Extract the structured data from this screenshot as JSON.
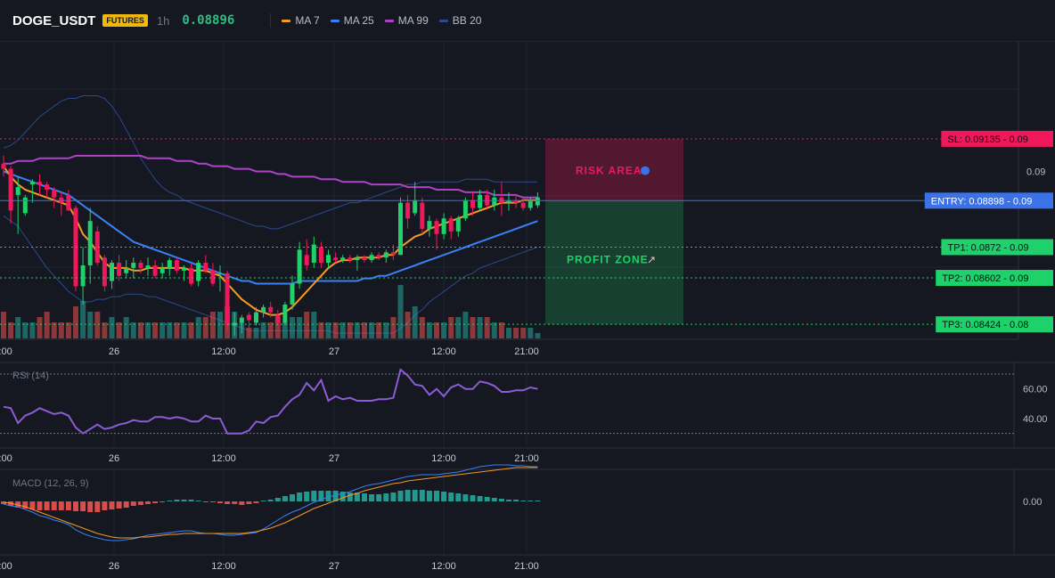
{
  "header": {
    "symbol": "DOGE_USDT",
    "badge": "FUTURES",
    "timeframe": "1h",
    "price": "0.08896",
    "legend": [
      {
        "label": "MA 7",
        "color": "#f59a23"
      },
      {
        "label": "MA 25",
        "color": "#3b7ff5"
      },
      {
        "label": "MA 99",
        "color": "#b042c9"
      },
      {
        "label": "BB 20",
        "color": "#2a4a8f"
      }
    ]
  },
  "levels": [
    {
      "name": "sl",
      "label": "SL: 0.09135 - 0.09",
      "value": 0.09135,
      "color": "#f0185a",
      "style": "dotted"
    },
    {
      "name": "entry",
      "label": "ENTRY: 0.08898 - 0.09",
      "value": 0.08898,
      "color": "#3b72e8",
      "style": "solid"
    },
    {
      "name": "tp1",
      "label": "TP1: 0.0872 - 0.09",
      "value": 0.0872,
      "color": "#1fd16a",
      "style": "dotted"
    },
    {
      "name": "tp2",
      "label": "TP2: 0.08602 - 0.09",
      "value": 0.08602,
      "color": "#1fd16a",
      "style": "dotted"
    },
    {
      "name": "tp3",
      "label": "TP3: 0.08424 - 0.08",
      "value": 0.08424,
      "color": "#1fd16a",
      "style": "dotted"
    }
  ],
  "zones": {
    "risk_label": "RISK AREA",
    "profit_label": "PROFIT ZONE",
    "risk_color": "#f0185a",
    "profit_color": "#1fd16a"
  },
  "price_axis": {
    "ticks": [
      "0.09"
    ],
    "tick_values": [
      0.0901
    ]
  },
  "time_axis": {
    "labels": [
      "12:00",
      "26",
      "12:00",
      "27",
      "12:00",
      "21:00"
    ]
  },
  "rsi": {
    "title": "RSI (14)",
    "ticks": [
      "60.00",
      "40.00"
    ],
    "tick_values": [
      60,
      40
    ],
    "bands": [
      70,
      30
    ],
    "ylim": [
      22,
      76
    ],
    "color": "#8b5cd6"
  },
  "macd": {
    "title": "MACD (12, 26, 9)",
    "ticks": [
      "0.00"
    ],
    "tick_values": [
      0
    ],
    "macd_color": "#3b7ff5",
    "signal_color": "#f59a23",
    "pos_color": "#26a69a",
    "neg_color": "#ef5350"
  },
  "chart_data": {
    "type": "candlestick",
    "ylim": [
      0.0837,
      0.0951
    ],
    "candles": [
      {
        "o": 0.0904,
        "h": 0.0907,
        "l": 0.0899,
        "c": 0.0902
      },
      {
        "o": 0.0902,
        "h": 0.0903,
        "l": 0.0881,
        "c": 0.0886
      },
      {
        "o": 0.0892,
        "h": 0.0899,
        "l": 0.0877,
        "c": 0.0895
      },
      {
        "o": 0.0885,
        "h": 0.0892,
        "l": 0.0884,
        "c": 0.0891
      },
      {
        "o": 0.0896,
        "h": 0.0898,
        "l": 0.0889,
        "c": 0.0897
      },
      {
        "o": 0.0897,
        "h": 0.09,
        "l": 0.0892,
        "c": 0.0896
      },
      {
        "o": 0.0896,
        "h": 0.0897,
        "l": 0.0891,
        "c": 0.0894
      },
      {
        "o": 0.0894,
        "h": 0.0895,
        "l": 0.0887,
        "c": 0.0891
      },
      {
        "o": 0.0891,
        "h": 0.0893,
        "l": 0.0884,
        "c": 0.0889
      },
      {
        "o": 0.0892,
        "h": 0.0894,
        "l": 0.0886,
        "c": 0.0886
      },
      {
        "o": 0.0887,
        "h": 0.0888,
        "l": 0.0855,
        "c": 0.0857
      },
      {
        "o": 0.0857,
        "h": 0.0872,
        "l": 0.085,
        "c": 0.0865
      },
      {
        "o": 0.0865,
        "h": 0.0887,
        "l": 0.0858,
        "c": 0.0882
      },
      {
        "o": 0.0878,
        "h": 0.088,
        "l": 0.0865,
        "c": 0.0866
      },
      {
        "o": 0.0868,
        "h": 0.0869,
        "l": 0.0855,
        "c": 0.0857
      },
      {
        "o": 0.0859,
        "h": 0.0867,
        "l": 0.0856,
        "c": 0.0866
      },
      {
        "o": 0.0866,
        "h": 0.0869,
        "l": 0.0859,
        "c": 0.0861
      },
      {
        "o": 0.0862,
        "h": 0.0867,
        "l": 0.086,
        "c": 0.0864
      },
      {
        "o": 0.0864,
        "h": 0.0868,
        "l": 0.086,
        "c": 0.0866
      },
      {
        "o": 0.0866,
        "h": 0.0867,
        "l": 0.0862,
        "c": 0.0864
      },
      {
        "o": 0.0864,
        "h": 0.0868,
        "l": 0.0861,
        "c": 0.0865
      },
      {
        "o": 0.0865,
        "h": 0.0867,
        "l": 0.086,
        "c": 0.0861
      },
      {
        "o": 0.0862,
        "h": 0.0866,
        "l": 0.086,
        "c": 0.0864
      },
      {
        "o": 0.0864,
        "h": 0.0868,
        "l": 0.0861,
        "c": 0.0867
      },
      {
        "o": 0.0867,
        "h": 0.0868,
        "l": 0.0862,
        "c": 0.0863
      },
      {
        "o": 0.0863,
        "h": 0.0865,
        "l": 0.0859,
        "c": 0.0864
      },
      {
        "o": 0.0864,
        "h": 0.0866,
        "l": 0.0857,
        "c": 0.0858
      },
      {
        "o": 0.0859,
        "h": 0.0867,
        "l": 0.0857,
        "c": 0.0866
      },
      {
        "o": 0.0866,
        "h": 0.0869,
        "l": 0.0862,
        "c": 0.0863
      },
      {
        "o": 0.0863,
        "h": 0.0866,
        "l": 0.0857,
        "c": 0.0858
      },
      {
        "o": 0.0862,
        "h": 0.0865,
        "l": 0.0855,
        "c": 0.0862
      },
      {
        "o": 0.0862,
        "h": 0.0863,
        "l": 0.084,
        "c": 0.0842
      },
      {
        "o": 0.0842,
        "h": 0.0847,
        "l": 0.0838,
        "c": 0.0843
      },
      {
        "o": 0.0843,
        "h": 0.0846,
        "l": 0.0839,
        "c": 0.0845
      },
      {
        "o": 0.0846,
        "h": 0.0847,
        "l": 0.0838,
        "c": 0.0844
      },
      {
        "o": 0.0843,
        "h": 0.0849,
        "l": 0.0842,
        "c": 0.0847
      },
      {
        "o": 0.0847,
        "h": 0.085,
        "l": 0.0845,
        "c": 0.0849
      },
      {
        "o": 0.0849,
        "h": 0.0851,
        "l": 0.0845,
        "c": 0.0847
      },
      {
        "o": 0.0846,
        "h": 0.0848,
        "l": 0.0842,
        "c": 0.0843
      },
      {
        "o": 0.0843,
        "h": 0.0851,
        "l": 0.0842,
        "c": 0.085
      },
      {
        "o": 0.085,
        "h": 0.0861,
        "l": 0.0848,
        "c": 0.0858
      },
      {
        "o": 0.0858,
        "h": 0.0874,
        "l": 0.0856,
        "c": 0.0871
      },
      {
        "o": 0.0869,
        "h": 0.0875,
        "l": 0.0863,
        "c": 0.0865
      },
      {
        "o": 0.0866,
        "h": 0.0876,
        "l": 0.0864,
        "c": 0.0873
      },
      {
        "o": 0.0872,
        "h": 0.0874,
        "l": 0.0864,
        "c": 0.0866
      },
      {
        "o": 0.0866,
        "h": 0.0871,
        "l": 0.0864,
        "c": 0.0869
      },
      {
        "o": 0.0868,
        "h": 0.087,
        "l": 0.0866,
        "c": 0.0867
      },
      {
        "o": 0.0867,
        "h": 0.0869,
        "l": 0.0866,
        "c": 0.0868
      },
      {
        "o": 0.0868,
        "h": 0.0869,
        "l": 0.0866,
        "c": 0.0867
      },
      {
        "o": 0.0867,
        "h": 0.0869,
        "l": 0.0863,
        "c": 0.0868
      },
      {
        "o": 0.0868,
        "h": 0.0869,
        "l": 0.0866,
        "c": 0.0867
      },
      {
        "o": 0.0867,
        "h": 0.087,
        "l": 0.0866,
        "c": 0.0869
      },
      {
        "o": 0.0869,
        "h": 0.087,
        "l": 0.0867,
        "c": 0.0868
      },
      {
        "o": 0.0868,
        "h": 0.0871,
        "l": 0.0866,
        "c": 0.087
      },
      {
        "o": 0.087,
        "h": 0.0873,
        "l": 0.0867,
        "c": 0.0869
      },
      {
        "o": 0.0869,
        "h": 0.0891,
        "l": 0.0869,
        "c": 0.0889
      },
      {
        "o": 0.0889,
        "h": 0.0892,
        "l": 0.0879,
        "c": 0.0883
      },
      {
        "o": 0.0885,
        "h": 0.0897,
        "l": 0.0884,
        "c": 0.089
      },
      {
        "o": 0.0889,
        "h": 0.0891,
        "l": 0.0877,
        "c": 0.0879
      },
      {
        "o": 0.0879,
        "h": 0.0884,
        "l": 0.0876,
        "c": 0.0882
      },
      {
        "o": 0.0882,
        "h": 0.0883,
        "l": 0.0871,
        "c": 0.0877
      },
      {
        "o": 0.0877,
        "h": 0.0885,
        "l": 0.0875,
        "c": 0.0883
      },
      {
        "o": 0.0883,
        "h": 0.0884,
        "l": 0.0875,
        "c": 0.0878
      },
      {
        "o": 0.0878,
        "h": 0.0884,
        "l": 0.0876,
        "c": 0.0883
      },
      {
        "o": 0.0883,
        "h": 0.0891,
        "l": 0.0882,
        "c": 0.089
      },
      {
        "o": 0.089,
        "h": 0.0893,
        "l": 0.0884,
        "c": 0.0887
      },
      {
        "o": 0.0887,
        "h": 0.0894,
        "l": 0.0886,
        "c": 0.0892
      },
      {
        "o": 0.0892,
        "h": 0.0894,
        "l": 0.0887,
        "c": 0.0888
      },
      {
        "o": 0.0888,
        "h": 0.0894,
        "l": 0.0886,
        "c": 0.0891
      },
      {
        "o": 0.0891,
        "h": 0.0897,
        "l": 0.0884,
        "c": 0.0889
      },
      {
        "o": 0.0889,
        "h": 0.0893,
        "l": 0.0886,
        "c": 0.089
      },
      {
        "o": 0.089,
        "h": 0.0892,
        "l": 0.0887,
        "c": 0.0889
      },
      {
        "o": 0.0889,
        "h": 0.0891,
        "l": 0.0886,
        "c": 0.0887
      },
      {
        "o": 0.0887,
        "h": 0.0891,
        "l": 0.0886,
        "c": 0.089
      },
      {
        "o": 0.0888,
        "h": 0.0893,
        "l": 0.0887,
        "c": 0.0891
      }
    ],
    "volume": [
      5,
      3,
      4,
      3,
      3,
      4,
      5,
      3,
      3,
      3,
      6,
      7,
      5,
      5,
      3,
      4,
      3,
      4,
      3,
      3,
      3,
      3,
      3,
      3,
      3,
      3,
      3,
      4,
      4,
      5,
      5,
      6,
      5,
      3,
      2,
      2,
      3,
      3,
      4,
      3,
      4,
      4,
      5,
      5,
      3,
      3,
      3,
      3,
      3,
      3,
      3,
      3,
      3,
      3,
      4,
      10,
      5,
      6,
      4,
      3,
      3,
      3,
      4,
      4,
      5,
      4,
      4,
      4,
      3,
      3,
      2,
      2,
      2,
      2,
      1
    ],
    "ma7": [
      0.0903,
      0.0899,
      0.0896,
      0.0894,
      0.0893,
      0.0892,
      0.0891,
      0.089,
      0.0889,
      0.0888,
      0.0883,
      0.0877,
      0.0874,
      0.087,
      0.0866,
      0.0864,
      0.0864,
      0.0864,
      0.0863,
      0.0863,
      0.0864,
      0.0864,
      0.0864,
      0.0864,
      0.0864,
      0.0864,
      0.0863,
      0.0863,
      0.0863,
      0.0862,
      0.0861,
      0.0858,
      0.0855,
      0.0852,
      0.085,
      0.0848,
      0.0847,
      0.0846,
      0.0846,
      0.0847,
      0.0849,
      0.0852,
      0.0855,
      0.0858,
      0.0861,
      0.0864,
      0.0866,
      0.0867,
      0.0867,
      0.0868,
      0.0868,
      0.0868,
      0.0868,
      0.0869,
      0.0869,
      0.0872,
      0.0874,
      0.0876,
      0.0877,
      0.0879,
      0.088,
      0.0881,
      0.0882,
      0.0883,
      0.0884,
      0.0885,
      0.0886,
      0.0887,
      0.0888,
      0.0889,
      0.0889,
      0.0889,
      0.089,
      0.089,
      0.089
    ],
    "ma25": [
      0.0901,
      0.09,
      0.0899,
      0.0898,
      0.0897,
      0.0896,
      0.0895,
      0.0894,
      0.0893,
      0.0892,
      0.089,
      0.0888,
      0.0886,
      0.0884,
      0.0882,
      0.088,
      0.0878,
      0.0876,
      0.0874,
      0.0873,
      0.0872,
      0.0871,
      0.087,
      0.0869,
      0.0868,
      0.0867,
      0.0866,
      0.0865,
      0.0864,
      0.0863,
      0.0862,
      0.0861,
      0.086,
      0.0859,
      0.0859,
      0.0858,
      0.0858,
      0.0858,
      0.0858,
      0.0858,
      0.0858,
      0.0859,
      0.0859,
      0.0859,
      0.0859,
      0.0859,
      0.0859,
      0.0859,
      0.0859,
      0.0859,
      0.086,
      0.086,
      0.0861,
      0.0861,
      0.0862,
      0.0863,
      0.0864,
      0.0865,
      0.0866,
      0.0867,
      0.0868,
      0.0869,
      0.087,
      0.0871,
      0.0872,
      0.0873,
      0.0874,
      0.0875,
      0.0876,
      0.0877,
      0.0878,
      0.0879,
      0.088,
      0.0881,
      0.0882
    ],
    "ma99": [
      0.0904,
      0.0904,
      0.0905,
      0.0905,
      0.0905,
      0.0906,
      0.0906,
      0.0906,
      0.0906,
      0.0906,
      0.0907,
      0.0907,
      0.0907,
      0.0907,
      0.0907,
      0.0907,
      0.0907,
      0.0907,
      0.0907,
      0.0907,
      0.0906,
      0.0906,
      0.0906,
      0.0906,
      0.0905,
      0.0905,
      0.0905,
      0.0904,
      0.0904,
      0.0903,
      0.0903,
      0.0903,
      0.0902,
      0.0902,
      0.0902,
      0.0901,
      0.0901,
      0.0901,
      0.09,
      0.09,
      0.0899,
      0.0899,
      0.0899,
      0.0899,
      0.0898,
      0.0898,
      0.0898,
      0.0897,
      0.0897,
      0.0897,
      0.0897,
      0.0896,
      0.0896,
      0.0896,
      0.0896,
      0.0896,
      0.0895,
      0.0895,
      0.0895,
      0.0895,
      0.0894,
      0.0894,
      0.0894,
      0.0894,
      0.0893,
      0.0893,
      0.0893,
      0.0893,
      0.0892,
      0.0892,
      0.0892,
      0.0892,
      0.0891,
      0.0891,
      0.0891
    ],
    "bb_upper": [
      0.091,
      0.0911,
      0.0913,
      0.0916,
      0.0919,
      0.0922,
      0.0924,
      0.0926,
      0.0928,
      0.0929,
      0.0929,
      0.093,
      0.093,
      0.093,
      0.0929,
      0.0926,
      0.0922,
      0.0917,
      0.0912,
      0.0906,
      0.0902,
      0.0898,
      0.0895,
      0.0893,
      0.0892,
      0.089,
      0.0889,
      0.0888,
      0.0887,
      0.0886,
      0.0885,
      0.0884,
      0.0883,
      0.0882,
      0.0881,
      0.088,
      0.088,
      0.0879,
      0.0879,
      0.088,
      0.0881,
      0.0882,
      0.0883,
      0.0884,
      0.0885,
      0.0886,
      0.0887,
      0.0888,
      0.0889,
      0.0889,
      0.089,
      0.0891,
      0.0892,
      0.0893,
      0.0894,
      0.0895,
      0.0896,
      0.0896,
      0.0897,
      0.0897,
      0.0897,
      0.0897,
      0.0897,
      0.0897,
      0.0898,
      0.0898,
      0.0898,
      0.0898,
      0.0897,
      0.0897,
      0.0897,
      0.0897,
      0.0897,
      0.0897,
      0.0897
    ],
    "bb_lower": [
      0.0884,
      0.0882,
      0.088,
      0.0876,
      0.0872,
      0.0868,
      0.0864,
      0.0861,
      0.0858,
      0.0855,
      0.0853,
      0.0851,
      0.0851,
      0.0852,
      0.0852,
      0.0853,
      0.0853,
      0.0854,
      0.0854,
      0.0854,
      0.0853,
      0.0853,
      0.0852,
      0.0851,
      0.085,
      0.0849,
      0.0848,
      0.0847,
      0.0846,
      0.0845,
      0.0844,
      0.0843,
      0.0842,
      0.0841,
      0.084,
      0.084,
      0.084,
      0.084,
      0.084,
      0.084,
      0.084,
      0.084,
      0.084,
      0.084,
      0.084,
      0.084,
      0.0839,
      0.0839,
      0.0839,
      0.0839,
      0.0839,
      0.0839,
      0.0839,
      0.0839,
      0.0839,
      0.0841,
      0.0843,
      0.0846,
      0.0848,
      0.0851,
      0.0853,
      0.0855,
      0.0857,
      0.0859,
      0.0861,
      0.0862,
      0.0864,
      0.0865,
      0.0866,
      0.0867,
      0.0868,
      0.0869,
      0.087,
      0.0871,
      0.0872
    ],
    "rsi": [
      48,
      47,
      37,
      42,
      44,
      47,
      45,
      43,
      44,
      42,
      34,
      30,
      33,
      36,
      33,
      34,
      36,
      37,
      39,
      38,
      38,
      41,
      41,
      40,
      41,
      40,
      38,
      38,
      42,
      40,
      40,
      30,
      30,
      30,
      32,
      38,
      37,
      41,
      42,
      48,
      53,
      56,
      64,
      59,
      66,
      52,
      55,
      53,
      54,
      52,
      52,
      52,
      53,
      53,
      54,
      73,
      69,
      63,
      62,
      56,
      60,
      55,
      61,
      63,
      60,
      60,
      65,
      64,
      62,
      58,
      58,
      59,
      59,
      61,
      60
    ],
    "macd_hist": [
      -0.3,
      -0.5,
      -0.7,
      -0.8,
      -0.9,
      -1.0,
      -1.0,
      -1.0,
      -1.0,
      -1.0,
      -1.1,
      -1.1,
      -1.2,
      -1.2,
      -1.0,
      -0.9,
      -0.8,
      -0.7,
      -0.5,
      -0.4,
      -0.3,
      -0.2,
      -0.1,
      0.1,
      0.2,
      0.2,
      0.2,
      0.1,
      -0.1,
      -0.1,
      -0.2,
      -0.3,
      -0.3,
      -0.4,
      -0.3,
      -0.2,
      0.1,
      0.2,
      0.4,
      0.6,
      0.8,
      1.0,
      1.1,
      1.2,
      1.2,
      1.2,
      1.2,
      1.1,
      1.0,
      1.0,
      0.9,
      0.8,
      0.8,
      0.9,
      1.0,
      1.2,
      1.3,
      1.3,
      1.3,
      1.2,
      1.2,
      1.1,
      1.0,
      0.9,
      0.8,
      0.7,
      0.6,
      0.5,
      0.4,
      0.3,
      0.2,
      0.2,
      0.1,
      0.1,
      0.1
    ],
    "macd_line": [
      -0.3,
      -0.5,
      -0.6,
      -0.9,
      -1.2,
      -1.6,
      -1.8,
      -2.1,
      -2.3,
      -2.6,
      -3.2,
      -3.6,
      -3.9,
      -4.1,
      -4.3,
      -4.4,
      -4.4,
      -4.3,
      -4.2,
      -4.0,
      -3.8,
      -3.7,
      -3.6,
      -3.5,
      -3.4,
      -3.3,
      -3.3,
      -3.5,
      -3.6,
      -3.6,
      -3.7,
      -3.8,
      -3.8,
      -3.7,
      -3.6,
      -3.5,
      -3.1,
      -2.6,
      -2.1,
      -1.6,
      -1.2,
      -0.9,
      -0.5,
      -0.1,
      0.2,
      0.5,
      0.7,
      0.9,
      1.1,
      1.4,
      1.7,
      1.9,
      2.0,
      2.2,
      2.4,
      2.6,
      2.8,
      2.9,
      3.0,
      3.0,
      3.0,
      3.1,
      3.2,
      3.3,
      3.5,
      3.7,
      3.9,
      4.0,
      4.1,
      4.1,
      4.1,
      4.0,
      4.0,
      3.9,
      3.9
    ],
    "macd_signal": [
      -0.1,
      -0.2,
      -0.4,
      -0.6,
      -0.9,
      -1.2,
      -1.5,
      -1.8,
      -2.1,
      -2.4,
      -2.7,
      -3.0,
      -3.3,
      -3.6,
      -3.8,
      -4.0,
      -4.1,
      -4.1,
      -4.1,
      -4.0,
      -4.0,
      -3.9,
      -3.8,
      -3.7,
      -3.7,
      -3.6,
      -3.6,
      -3.6,
      -3.6,
      -3.6,
      -3.6,
      -3.6,
      -3.6,
      -3.6,
      -3.5,
      -3.4,
      -3.2,
      -3.0,
      -2.7,
      -2.4,
      -2.0,
      -1.6,
      -1.2,
      -0.8,
      -0.5,
      -0.2,
      0.1,
      0.4,
      0.7,
      0.9,
      1.2,
      1.4,
      1.6,
      1.8,
      2.0,
      2.1,
      2.3,
      2.4,
      2.5,
      2.6,
      2.7,
      2.8,
      2.9,
      3.0,
      3.1,
      3.2,
      3.3,
      3.4,
      3.5,
      3.6,
      3.7,
      3.8,
      3.8,
      3.8,
      3.8
    ]
  }
}
